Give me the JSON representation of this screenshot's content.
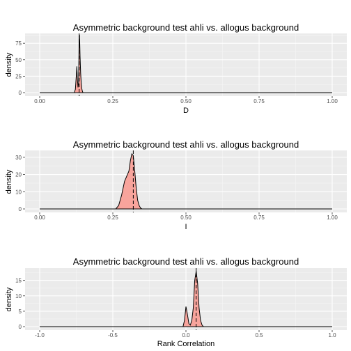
{
  "chart_data": [
    {
      "type": "area",
      "title": "Asymmetric background test ahli vs. allogus background",
      "xlabel": "D",
      "ylabel": "density",
      "xlim": [
        0,
        1
      ],
      "ylim": [
        0,
        90
      ],
      "x_ticks": [
        0,
        0.25,
        0.5,
        0.75,
        1
      ],
      "x_tick_labels": [
        "0.00",
        "0.25",
        "0.50",
        "0.75",
        "1.00"
      ],
      "y_ticks": [
        0,
        25,
        50,
        75
      ],
      "y_tick_labels": [
        "0",
        "25",
        "50",
        "75"
      ],
      "observed_value": 0.135,
      "fill_color": "#f8a49c",
      "series": [
        {
          "x": [
            0.118,
            0.122,
            0.125,
            0.127,
            0.129,
            0.131,
            0.133,
            0.134,
            0.135,
            0.136,
            0.137,
            0.138,
            0.14,
            0.142,
            0.144,
            0.146,
            0.148
          ],
          "values": [
            0,
            5,
            25,
            40,
            20,
            8,
            15,
            50,
            85,
            88,
            75,
            55,
            30,
            15,
            6,
            2,
            0
          ]
        }
      ]
    },
    {
      "type": "area",
      "title": "Asymmetric background test ahli vs. allogus background",
      "xlabel": "I",
      "ylabel": "density",
      "xlim": [
        0,
        1
      ],
      "ylim": [
        0,
        34
      ],
      "x_ticks": [
        0,
        0.25,
        0.5,
        0.75,
        1
      ],
      "x_tick_labels": [
        "0.00",
        "0.25",
        "0.50",
        "0.75",
        "1.00"
      ],
      "y_ticks": [
        0,
        10,
        20,
        30
      ],
      "y_tick_labels": [
        "0",
        "10",
        "20",
        "30"
      ],
      "observed_value": 0.32,
      "fill_color": "#f8a49c",
      "series": [
        {
          "x": [
            0.26,
            0.27,
            0.28,
            0.29,
            0.3,
            0.305,
            0.31,
            0.315,
            0.32,
            0.325,
            0.33,
            0.335,
            0.34,
            0.345,
            0.35
          ],
          "values": [
            0,
            2,
            8,
            16,
            20,
            22,
            28,
            32,
            31,
            22,
            12,
            5,
            2,
            0.5,
            0
          ]
        }
      ]
    },
    {
      "type": "area",
      "title": "Asymmetric background test ahli vs. allogus background",
      "xlabel": "Rank Correlation",
      "ylabel": "density",
      "xlim": [
        -1,
        1
      ],
      "ylim": [
        0,
        19
      ],
      "x_ticks": [
        -1,
        -0.5,
        0,
        0.5,
        1
      ],
      "x_tick_labels": [
        "-1.0",
        "-0.5",
        "0.0",
        "0.5",
        "1.0"
      ],
      "y_ticks": [
        0,
        5,
        10,
        15
      ],
      "y_tick_labels": [
        "0",
        "5",
        "10",
        "15"
      ],
      "observed_value": 0.07,
      "fill_color": "#f8a49c",
      "series": [
        {
          "x": [
            -0.02,
            -0.01,
            0.0,
            0.01,
            0.02,
            0.03,
            0.04,
            0.05,
            0.06,
            0.07,
            0.08,
            0.09,
            0.1,
            0.11,
            0.12
          ],
          "values": [
            0,
            2,
            6.5,
            4,
            1,
            0.5,
            2,
            6,
            15,
            18,
            14,
            6,
            2,
            0.5,
            0
          ]
        }
      ]
    }
  ]
}
